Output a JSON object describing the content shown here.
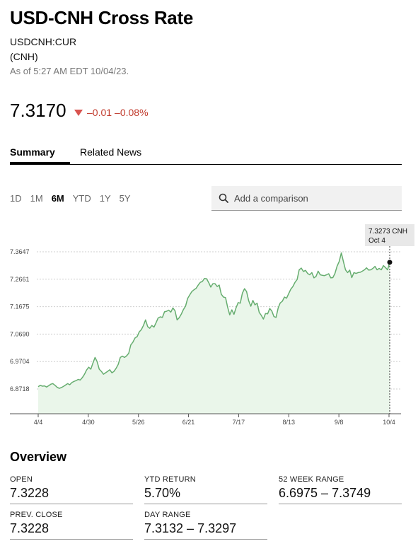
{
  "header": {
    "title": "USD-CNH Cross Rate",
    "ticker": "USDCNH:CUR",
    "currency": "(CNH)",
    "as_of": "As of 5:27 AM EDT 10/04/23."
  },
  "quote": {
    "price": "7.3170",
    "change": "–0.01",
    "change_pct": "–0.08%",
    "direction_color": "#d9534f"
  },
  "tabs": {
    "summary": "Summary",
    "news": "Related News"
  },
  "ranges": [
    "1D",
    "1M",
    "6M",
    "YTD",
    "1Y",
    "5Y"
  ],
  "active_range": "6M",
  "compare": {
    "placeholder": "Add a comparison",
    "icon": "search-icon"
  },
  "chart_data": {
    "type": "area",
    "series": [
      {
        "values": [
          6.88,
          6.885,
          6.882,
          6.883,
          6.879,
          6.884,
          6.889,
          6.891,
          6.885,
          6.878,
          6.874,
          6.877,
          6.881,
          6.886,
          6.891,
          6.887,
          6.895,
          6.899,
          6.902,
          6.906,
          6.904,
          6.913,
          6.925,
          6.94,
          6.95,
          6.943,
          6.965,
          6.985,
          6.97,
          6.943,
          6.935,
          6.925,
          6.93,
          6.935,
          6.941,
          6.93,
          6.935,
          6.946,
          6.96,
          6.985,
          6.99,
          6.985,
          6.991,
          7.0,
          7.03,
          7.04,
          7.055,
          7.06,
          7.077,
          7.085,
          7.1,
          7.12,
          7.096,
          7.09,
          7.1,
          7.094,
          7.11,
          7.127,
          7.131,
          7.129,
          7.149,
          7.151,
          7.155,
          7.148,
          7.163,
          7.153,
          7.12,
          7.128,
          7.141,
          7.157,
          7.169,
          7.197,
          7.21,
          7.222,
          7.228,
          7.233,
          7.245,
          7.255,
          7.258,
          7.269,
          7.268,
          7.254,
          7.238,
          7.25,
          7.25,
          7.24,
          7.245,
          7.212,
          7.202,
          7.2,
          7.166,
          7.138,
          7.156,
          7.14,
          7.163,
          7.182,
          7.18,
          7.216,
          7.232,
          7.222,
          7.189,
          7.169,
          7.19,
          7.174,
          7.18,
          7.147,
          7.136,
          7.123,
          7.143,
          7.142,
          7.161,
          7.152,
          7.132,
          7.129,
          7.163,
          7.181,
          7.187,
          7.202,
          7.198,
          7.214,
          7.23,
          7.24,
          7.255,
          7.265,
          7.3,
          7.306,
          7.294,
          7.298,
          7.287,
          7.282,
          7.29,
          7.271,
          7.276,
          7.295,
          7.282,
          7.28,
          7.279,
          7.282,
          7.286,
          7.271,
          7.272,
          7.287,
          7.313,
          7.33,
          7.361,
          7.33,
          7.3,
          7.29,
          7.299,
          7.272,
          7.29,
          7.287,
          7.29,
          7.291,
          7.295,
          7.3,
          7.307,
          7.299,
          7.3,
          7.305,
          7.312,
          7.3,
          7.305,
          7.3,
          7.315,
          7.308,
          7.3,
          7.327
        ]
      }
    ],
    "y_ticks": [
      "7.3647",
      "7.2661",
      "7.1675",
      "7.0690",
      "6.9704",
      "6.8718"
    ],
    "y_range": [
      6.8718,
      7.3647
    ],
    "x_labels": [
      "4/4",
      "4/30",
      "5/26",
      "6/21",
      "7/17",
      "8/13",
      "9/8",
      "10/4"
    ],
    "tooltip": {
      "value": "7.3273 CNH",
      "date": "Oct 4"
    },
    "line_color": "#66ad6f",
    "fill_color": "#eaf6ea",
    "grid": "dotted horizontal"
  },
  "overview": {
    "title": "Overview",
    "stats": [
      {
        "label": "OPEN",
        "value": "7.3228"
      },
      {
        "label": "YTD RETURN",
        "value": "5.70%"
      },
      {
        "label": "52 WEEK RANGE",
        "value": "6.6975 – 7.3749"
      },
      {
        "label": "PREV. CLOSE",
        "value": "7.3228"
      },
      {
        "label": "DAY RANGE",
        "value": "7.3132 – 7.3297"
      }
    ]
  }
}
